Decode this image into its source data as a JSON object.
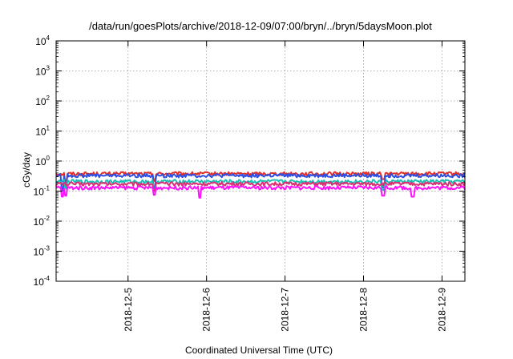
{
  "chart_data": {
    "type": "line",
    "title": "/data/run/goesPlots/archive/2018-12-09/07:00/bryn/../bryn/5daysMoon.plot",
    "xlabel": "Coordinated Universal Time (UTC)",
    "ylabel": "cGy/day",
    "y_scale": "log",
    "ylim": [
      0.0001,
      10000
    ],
    "y_ticks": [
      {
        "base": "10",
        "exp": "-4",
        "value": 0.0001
      },
      {
        "base": "10",
        "exp": "-3",
        "value": 0.001
      },
      {
        "base": "10",
        "exp": "-2",
        "value": 0.01
      },
      {
        "base": "10",
        "exp": "-1",
        "value": 0.1
      },
      {
        "base": "10",
        "exp": "0",
        "value": 1
      },
      {
        "base": "10",
        "exp": "1",
        "value": 10
      },
      {
        "base": "10",
        "exp": "2",
        "value": 100
      },
      {
        "base": "10",
        "exp": "3",
        "value": 1000
      },
      {
        "base": "10",
        "exp": "4",
        "value": 10000
      }
    ],
    "xlim": [
      "2018-12-04T02:00",
      "2018-12-09T07:00"
    ],
    "x_ticks": [
      "2018-12-5",
      "2018-12-6",
      "2018-12-7",
      "2018-12-8",
      "2018-12-9"
    ],
    "grid": true,
    "series": [
      {
        "color": "#e0302a",
        "base_value": 0.38,
        "dips": [
          [
            "2018-12-04T05:00",
            0.2
          ],
          [
            "2018-12-05T08:00",
            0.22
          ],
          [
            "2018-12-08T06:00",
            0.25
          ]
        ]
      },
      {
        "color": "#2c4fe6",
        "base_value": 0.33,
        "dips": [
          [
            "2018-12-04T04:00",
            0.1
          ],
          [
            "2018-12-04T05:00",
            0.15
          ],
          [
            "2018-12-05T08:00",
            0.12
          ],
          [
            "2018-12-08T06:00",
            0.13
          ]
        ]
      },
      {
        "color": "#20c0b8",
        "base_value": 0.21,
        "dips": [
          [
            "2018-12-04T05:00",
            0.12
          ],
          [
            "2018-12-05T08:00",
            0.11
          ],
          [
            "2018-12-08T06:00",
            0.11
          ]
        ]
      },
      {
        "color": "#d83070",
        "base_value": 0.175,
        "dips": [
          [
            "2018-12-05T08:00",
            0.1
          ]
        ]
      },
      {
        "color": "#ff10ff",
        "base_value": 0.13,
        "dips": [
          [
            "2018-12-04T04:00",
            0.065
          ],
          [
            "2018-12-04T05:00",
            0.07
          ],
          [
            "2018-12-05T08:00",
            0.075
          ],
          [
            "2018-12-05T22:00",
            0.06
          ],
          [
            "2018-12-08T06:00",
            0.07
          ],
          [
            "2018-12-08T15:00",
            0.065
          ]
        ]
      }
    ]
  }
}
